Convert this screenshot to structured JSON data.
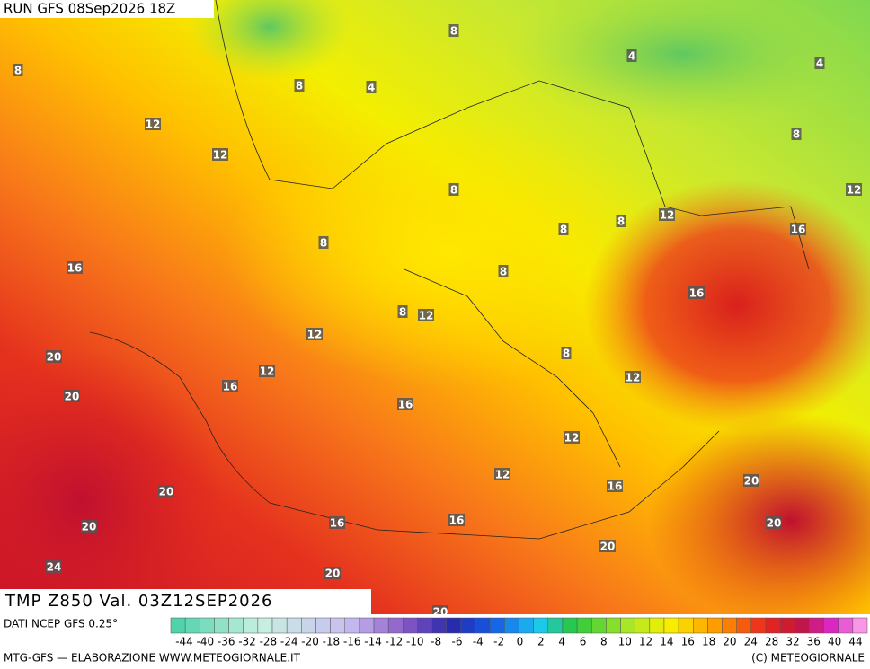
{
  "header": {
    "run": "RUN GFS 08Sep2026 18Z",
    "title": "TMP Z850 Val. 03Z12SEP2026"
  },
  "map_labels": [
    8,
    8,
    4,
    8,
    4,
    4,
    12,
    12,
    8,
    8,
    12,
    8,
    8,
    8,
    12,
    16,
    16,
    8,
    16,
    8,
    12,
    12,
    20,
    8,
    12,
    16,
    12,
    20,
    16,
    12,
    12,
    16,
    20,
    20,
    16,
    16,
    20,
    20,
    20,
    24,
    20,
    20
  ],
  "legend": {
    "source": "DATI NCEP GFS 0.25°",
    "labels": [
      -44,
      -40,
      -36,
      -32,
      -28,
      -24,
      -20,
      -18,
      -16,
      -14,
      -12,
      -10,
      -8,
      -6,
      -4,
      -2,
      0,
      2,
      4,
      6,
      8,
      10,
      12,
      14,
      16,
      18,
      20,
      24,
      28,
      32,
      36,
      40,
      44
    ]
  },
  "footer": {
    "left": "MTG-GFS — ELABORAZIONE WWW.METEOGIORNALE.IT",
    "right": "(C) METEOGIORNALE"
  }
}
